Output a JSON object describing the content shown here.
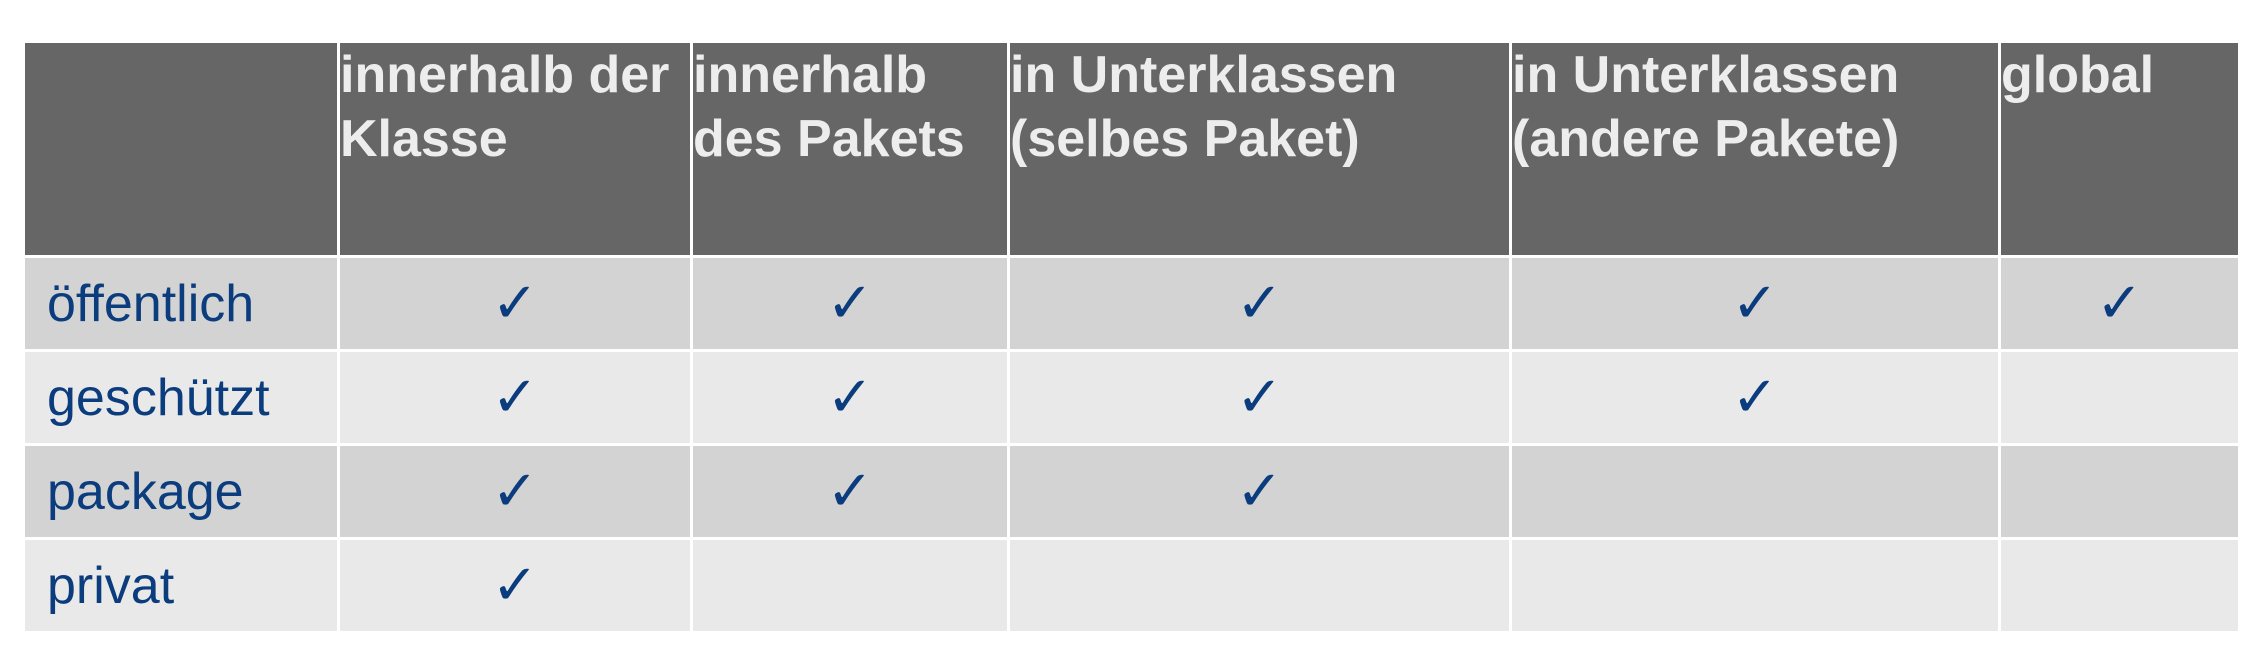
{
  "table": {
    "corner": "",
    "columns": [
      "innerhalb der Klasse",
      "innerhalb des Pakets",
      "in Unterklassen (selbes Paket)",
      "in Unterklassen (andere Pakete)",
      "global"
    ],
    "rows": [
      {
        "label": "öffentlich",
        "cells": [
          "✓",
          "✓",
          "✓",
          "✓",
          "✓"
        ]
      },
      {
        "label": "geschützt",
        "cells": [
          "✓",
          "✓",
          "✓",
          "✓",
          ""
        ]
      },
      {
        "label": "package",
        "cells": [
          "✓",
          "✓",
          "✓",
          "",
          ""
        ]
      },
      {
        "label": "privat",
        "cells": [
          "✓",
          "",
          "",
          "",
          ""
        ]
      }
    ]
  },
  "colors": {
    "header_bg": "#666666",
    "header_text": "#ededed",
    "row_dark": "#d3d3d3",
    "row_light": "#e9e9e9",
    "accent_text": "#0b3c7d"
  }
}
